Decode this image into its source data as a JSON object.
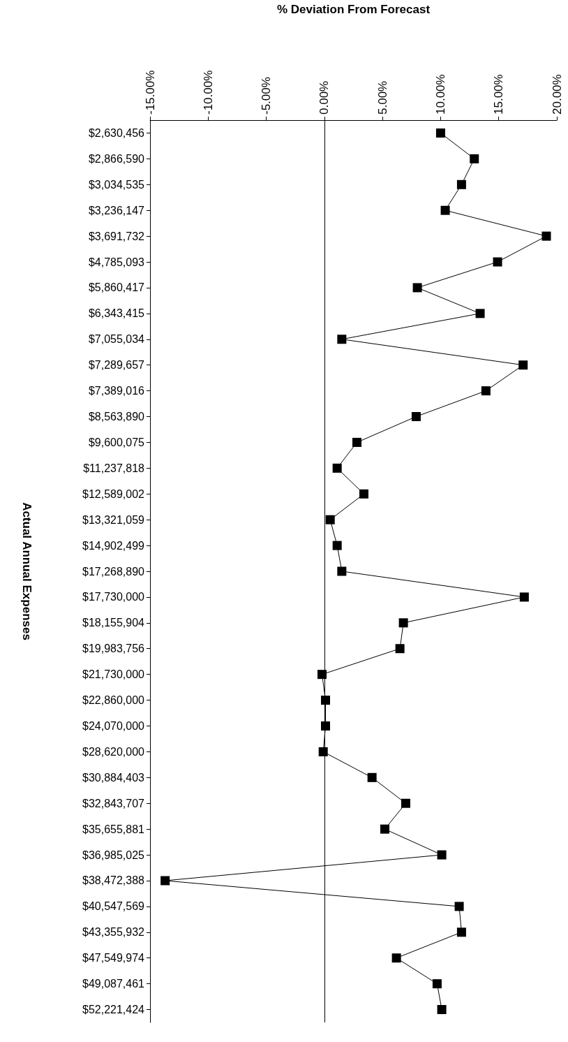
{
  "chart_data": {
    "type": "line",
    "orientation": "horizontal",
    "xlabel": "% Deviation From Forecast",
    "ylabel": "Actual Annual Expenses",
    "categories": [
      "$2,630,456",
      "$2,866,590",
      "$3,034,535",
      "$3,236,147",
      "$3,691,732",
      "$4,785,093",
      "$5,860,417",
      "$6,343,415",
      "$7,055,034",
      "$7,289,657",
      "$7,389,016",
      "$8,563,890",
      "$9,600,075",
      "$11,237,818",
      "$12,589,002",
      "$13,321,059",
      "$14,902,499",
      "$17,268,890",
      "$17,730,000",
      "$18,155,904",
      "$19,983,756",
      "$21,730,000",
      "$22,860,000",
      "$24,070,000",
      "$28,620,000",
      "$30,884,403",
      "$32,843,707",
      "$35,655,881",
      "$36,985,025",
      "$38,472,388",
      "$40,547,569",
      "$43,355,932",
      "$47,549,974",
      "$49,087,461",
      "$52,221,424"
    ],
    "series": [
      {
        "color": "#000000",
        "values": [
          10.0,
          12.9,
          11.8,
          10.4,
          19.1,
          14.9,
          8.0,
          13.4,
          1.5,
          17.1,
          13.9,
          7.9,
          2.8,
          1.1,
          3.4,
          0.5,
          1.1,
          1.5,
          17.2,
          6.8,
          6.5,
          -0.2,
          0.1,
          0.1,
          -0.1,
          4.1,
          7.0,
          5.2,
          10.1,
          -13.7,
          11.6,
          11.8,
          6.2,
          9.7,
          10.1
        ]
      }
    ],
    "xlim": [
      -15,
      20
    ],
    "xticks": [
      {
        "value": -15,
        "label": "-15.00%"
      },
      {
        "value": -10,
        "label": "-10.00%"
      },
      {
        "value": -5,
        "label": "-5.00%"
      },
      {
        "value": 0,
        "label": "0.00%"
      },
      {
        "value": 5,
        "label": "5.00%"
      },
      {
        "value": 10,
        "label": "10.00%"
      },
      {
        "value": 15,
        "label": "15.00%"
      },
      {
        "value": 20,
        "label": "20.00%"
      }
    ],
    "ref_lines": [
      {
        "axis": "x",
        "value": 0,
        "color": "#000000"
      }
    ],
    "grid": false,
    "marker": "square",
    "line_style": "solid"
  }
}
